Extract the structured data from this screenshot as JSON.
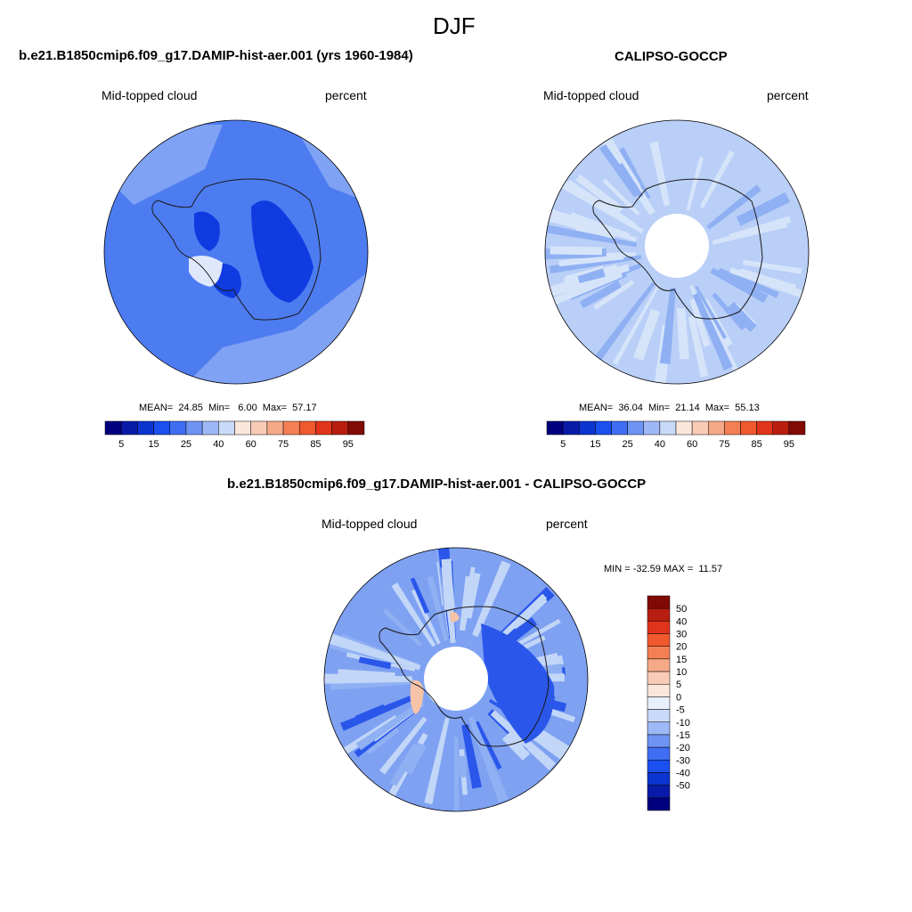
{
  "figure": {
    "season": "DJF"
  },
  "panels": {
    "model": {
      "title": "b.e21.B1850cmip6.f09_g17.DAMIP-hist-aer.001 (yrs 1960-1984)",
      "variable": "Mid-topped cloud",
      "units": "percent",
      "stats": "MEAN=  24.85  Min=   6.00  Max=  57.17"
    },
    "obs": {
      "title": "CALIPSO-GOCCP",
      "variable": "Mid-topped cloud",
      "units": "percent",
      "stats": "MEAN=  36.04  Min=  21.14  Max=  55.13"
    },
    "diff": {
      "title": "b.e21.B1850cmip6.f09_g17.DAMIP-hist-aer.001 - CALIPSO-GOCCP",
      "variable": "Mid-topped cloud",
      "units": "percent",
      "stats": "MIN = -32.59 MAX =  11.57"
    }
  },
  "colorbars": {
    "horizontal": {
      "colors": [
        "#00007f",
        "#0a1aa8",
        "#0b34d0",
        "#1a4ff0",
        "#3f6ef5",
        "#6e93f3",
        "#9db8f5",
        "#c8daf8",
        "#fbe6dc",
        "#f9cbb6",
        "#f6a987",
        "#f47f55",
        "#f0582e",
        "#e1341a",
        "#b81e10",
        "#820a04"
      ],
      "labels": [
        "5",
        "15",
        "25",
        "40",
        "60",
        "75",
        "85",
        "95"
      ]
    },
    "vertical": {
      "colors_top_to_bottom": [
        "#820a04",
        "#b81e10",
        "#e1341a",
        "#f0582e",
        "#f47f55",
        "#f6a987",
        "#f9cbb6",
        "#fbe6dc",
        "#e8f0fb",
        "#c8daf8",
        "#9db8f5",
        "#6e93f3",
        "#3f6ef5",
        "#1a4ff0",
        "#0b34d0",
        "#0a1aa8",
        "#00007f"
      ],
      "labels_top_to_bottom": [
        "50",
        "40",
        "30",
        "20",
        "15",
        "10",
        "5",
        "0",
        "-5",
        "-10",
        "-15",
        "-20",
        "-30",
        "-40",
        "-50"
      ]
    }
  },
  "map_colors": {
    "coastline": "#1a1a1a",
    "model_base": "#4d7cf1",
    "model_light": "#7fa2f4",
    "model_dark": "#0f3be0",
    "obs_base": "#b9cff7",
    "obs_light": "#d6e4fa",
    "obs_mid": "#8fb0f3",
    "diff_base": "#7ea1f2",
    "diff_light": "#c2d6f8",
    "diff_dark": "#2a57ea",
    "warm": "#f6c3a8"
  }
}
